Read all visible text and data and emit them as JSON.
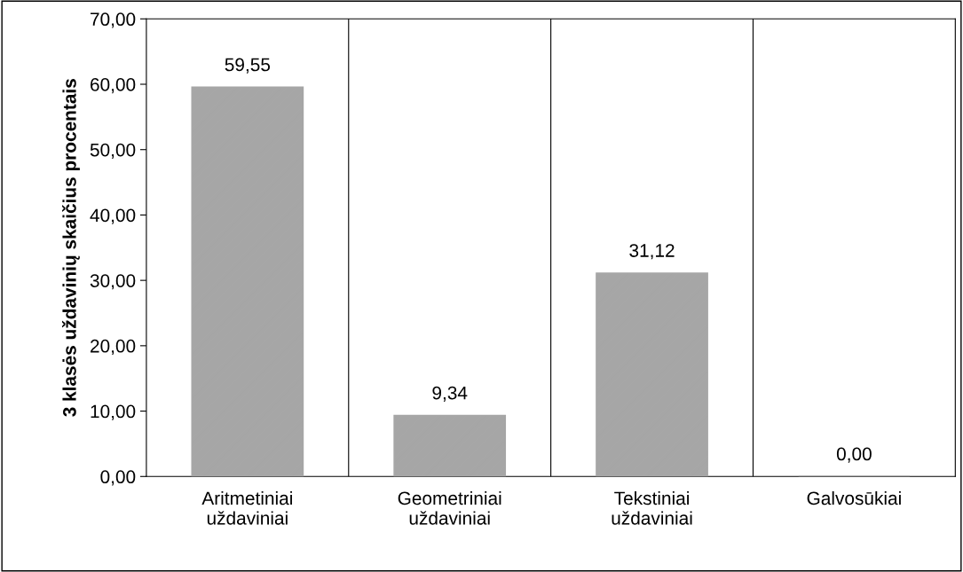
{
  "chart_data": {
    "type": "bar",
    "ylabel": "3 klasės uždavinių skaičius procentais",
    "categories": [
      "Aritmetiniai\nuždaviniai",
      "Geometriniai\nuždaviniai",
      "Tekstiniai\nuždaviniai",
      "Galvosūkiai"
    ],
    "values": [
      59.55,
      9.34,
      31.12,
      0.0
    ],
    "value_labels": [
      "59,55",
      "9,34",
      "31,12",
      "0,00"
    ],
    "color": "#a6a6a6",
    "ylim": [
      0,
      70
    ],
    "yticks": [
      {
        "value": 0,
        "label": "0,00"
      },
      {
        "value": 10,
        "label": "10,00"
      },
      {
        "value": 20,
        "label": "20,00"
      },
      {
        "value": 30,
        "label": "30,00"
      },
      {
        "value": 40,
        "label": "40,00"
      },
      {
        "value": 50,
        "label": "50,00"
      },
      {
        "value": 60,
        "label": "60,00"
      },
      {
        "value": 70,
        "label": "70,00"
      }
    ],
    "grid": "x"
  }
}
